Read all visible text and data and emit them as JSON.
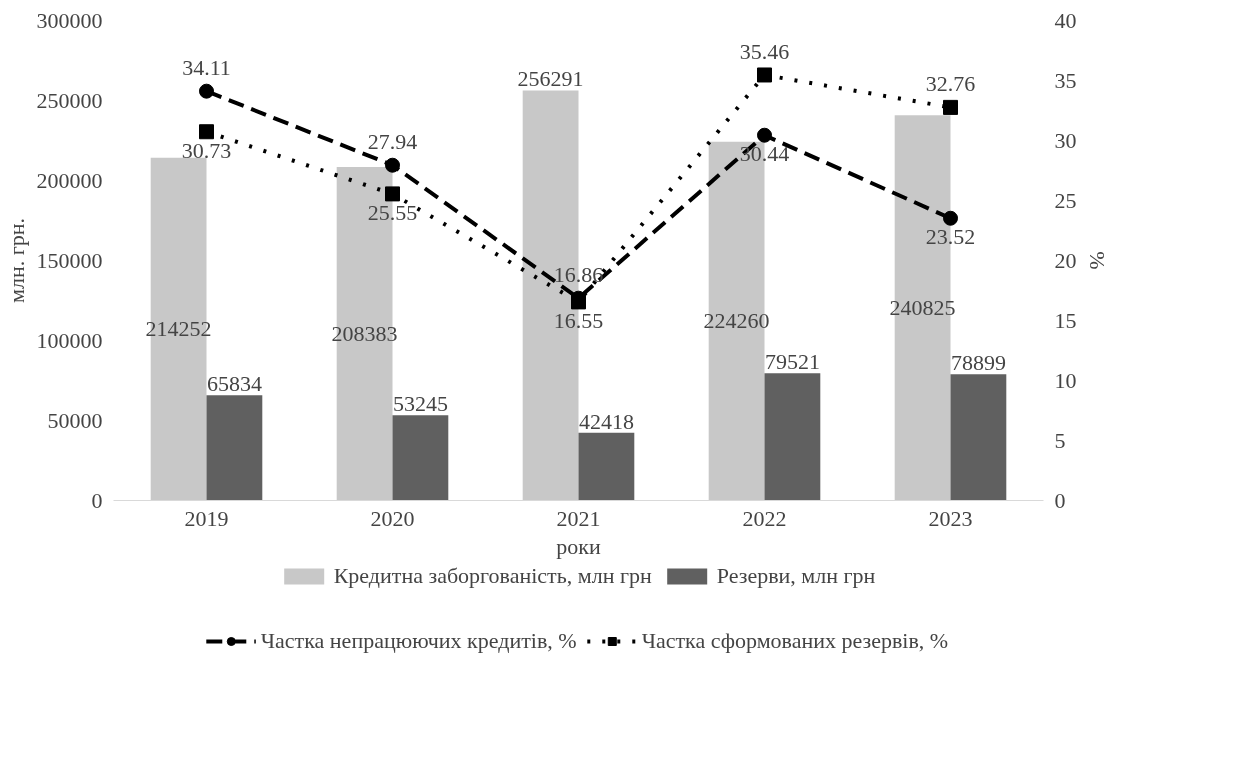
{
  "chart_data": {
    "type": "bar",
    "xlabel": "роки",
    "ylabel": "млн. грн.",
    "y2label": "%",
    "categories": [
      "2019",
      "2020",
      "2021",
      "2022",
      "2023"
    ],
    "series": [
      {
        "name": "Кредитна заборгованість, млн грн",
        "color": "#c8c8c8",
        "values": [
          214252,
          208383,
          256291,
          224260,
          240825
        ]
      },
      {
        "name": "Резерви, млн грн",
        "color": "#606060",
        "values": [
          65834,
          53245,
          42418,
          79521,
          78899
        ]
      },
      {
        "name": "Частка непрацюючих кредитів, %",
        "type": "line",
        "axis": "y2",
        "color": "#000000",
        "marker": "circle",
        "line_style": "dashed",
        "values": [
          34.11,
          27.94,
          16.86,
          30.44,
          23.52
        ]
      },
      {
        "name": "Частка сформованих резервів, %",
        "type": "line",
        "axis": "y2",
        "color": "#000000",
        "marker": "square",
        "line_style": "dotted",
        "values": [
          30.73,
          25.55,
          16.55,
          35.46,
          32.76
        ]
      }
    ],
    "ylim": [
      0,
      300000
    ],
    "yticks": [
      0,
      50000,
      100000,
      150000,
      200000,
      250000,
      300000
    ],
    "y2lim": [
      0,
      40
    ],
    "y2ticks": [
      0,
      5,
      10,
      15,
      20,
      25,
      30,
      35,
      40
    ],
    "grid": false,
    "data_labels": true,
    "legend": "bottom"
  }
}
